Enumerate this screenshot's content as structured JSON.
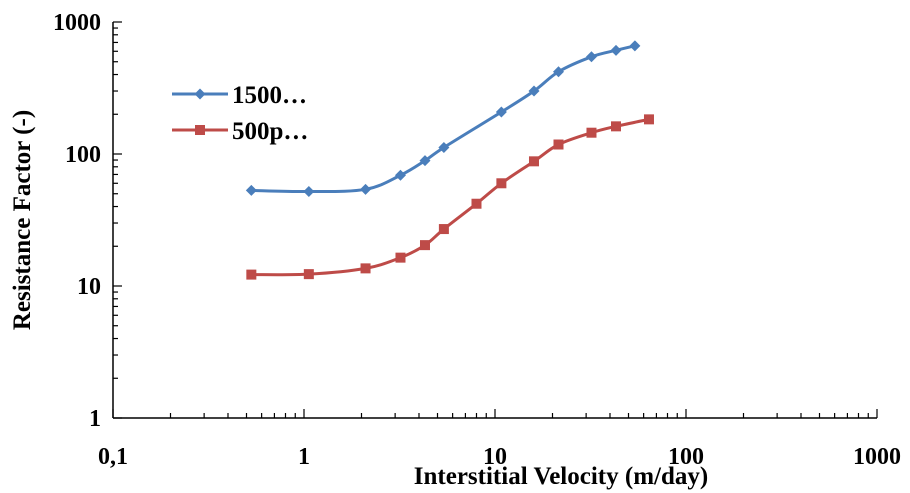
{
  "chart_data": {
    "type": "line",
    "xlabel": "Interstitial Velocity (m/day)",
    "ylabel": "Resistance Factor (-)",
    "x_scale": "log",
    "y_scale": "log",
    "xlim": [
      0.1,
      1000
    ],
    "ylim": [
      1,
      1000
    ],
    "x_ticks": [
      "0,1",
      "1",
      "10",
      "100",
      "1000"
    ],
    "y_ticks": [
      "1",
      "10",
      "100",
      "1000"
    ],
    "grid": false,
    "legend_position": "top-left",
    "series": [
      {
        "name": "1500…",
        "color": "#4a7ebb",
        "marker": "diamond",
        "x": [
          0.53,
          1.06,
          2.1,
          3.2,
          4.3,
          5.4,
          10.8,
          16,
          21.5,
          32,
          43,
          54
        ],
        "y": [
          53,
          52,
          54,
          69,
          89,
          112,
          208,
          300,
          420,
          545,
          610,
          660
        ]
      },
      {
        "name": "500p…",
        "color": "#be4b48",
        "marker": "square",
        "x": [
          0.53,
          1.06,
          2.1,
          3.2,
          4.3,
          5.4,
          8,
          10.8,
          16,
          21.5,
          32,
          43,
          64
        ],
        "y": [
          12.2,
          12.3,
          13.6,
          16.4,
          20.4,
          27,
          42,
          60,
          88,
          118,
          145,
          162,
          183
        ]
      }
    ]
  }
}
